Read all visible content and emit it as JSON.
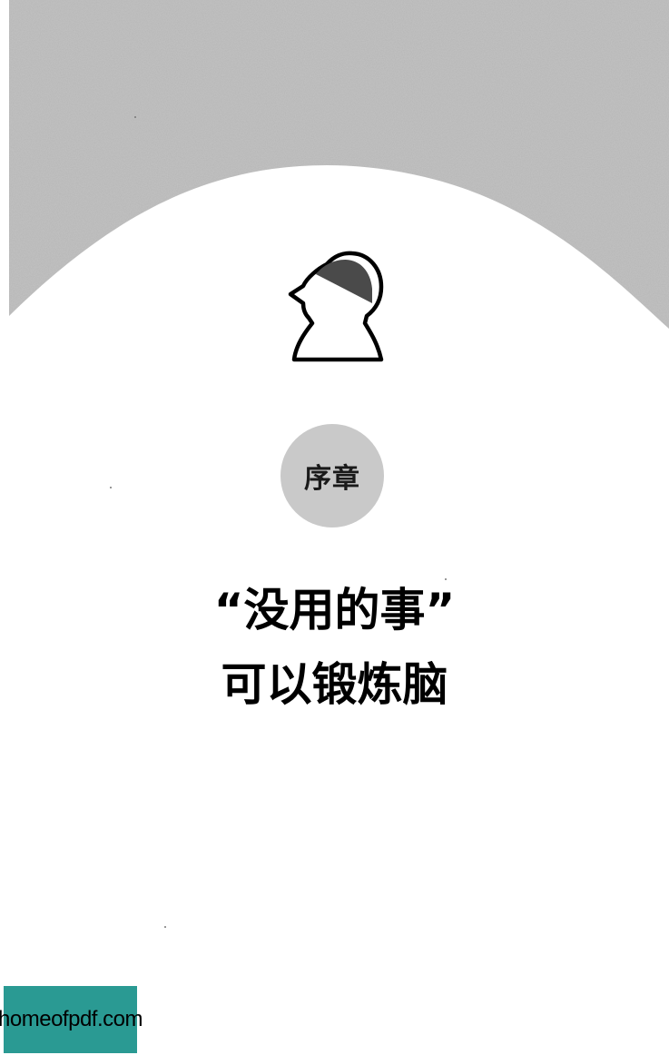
{
  "chapter": {
    "label": "序章"
  },
  "title": {
    "line1": "“没用的事”",
    "line2": "可以锻炼脑"
  },
  "watermark": {
    "text": "homeofpdf.com"
  },
  "colors": {
    "background": "#ffffff",
    "top_texture": "#b6b6b6",
    "badge": "#c9c9c9",
    "head_fill": "#4a4a4a",
    "watermark_bg": "#2a9a93"
  },
  "icons": {
    "head": "head-profile-icon"
  }
}
